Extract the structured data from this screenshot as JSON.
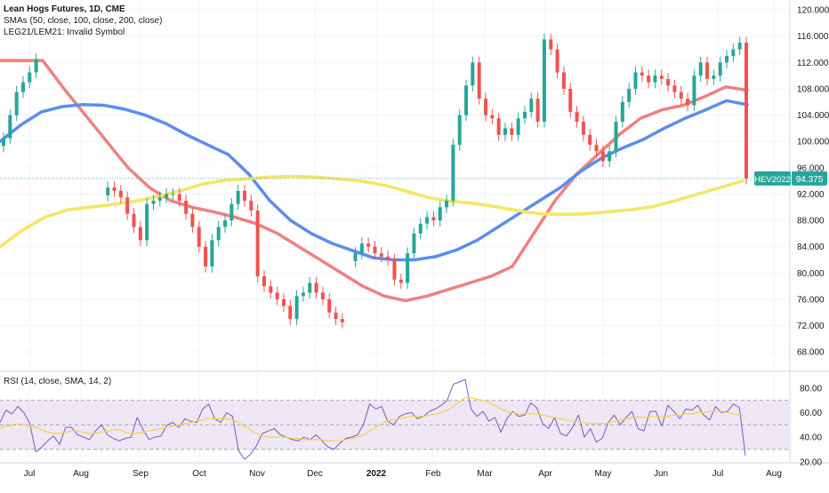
{
  "header": {
    "title": "Lean Hogs Futures, 1D, CME",
    "sma_label": "SMAs (50, close, 100, close, 200, close)",
    "invalid_symbol_label": "LEG21/LEM21: Invalid Symbol"
  },
  "rsi_panel": {
    "label": "RSI (14, close, SMA, 14, 2)"
  },
  "price_badge": {
    "symbol": "HEV2022",
    "price": "94.375"
  },
  "colors": {
    "up": "#26a69a",
    "down": "#ef5350",
    "sma50": "#f08080",
    "sma100": "#5b8def",
    "sma200": "#f5e663",
    "rsi": "#7e57c2",
    "rsi_ma": "#f5d342",
    "rsi_band": "#ede7f6",
    "badge_symbol": "#26a69a",
    "badge_price": "#26a69a"
  },
  "chart_data": [
    {
      "type": "candlestick",
      "y_ticks": [
        "120.000",
        "116.000",
        "112.000",
        "108.000",
        "104.000",
        "100.000",
        "96.000",
        "92.000",
        "88.000",
        "84.000",
        "80.000",
        "76.000",
        "72.000",
        "68.000"
      ],
      "ylim": [
        65.6,
        121.5
      ],
      "x_ticks": [
        "Jul",
        "Aug",
        "Sep",
        "Oct",
        "Nov",
        "Dec",
        "2022",
        "Feb",
        "Mar",
        "Apr",
        "May",
        "Jun",
        "Jul",
        "Aug"
      ],
      "close": [
        100.5,
        104.0,
        107.5,
        109.0,
        110.5,
        112.5,
        null,
        null,
        null,
        null,
        null,
        null,
        null,
        null,
        null,
        null,
        93.0,
        92.5,
        91.5,
        89.0,
        87.0,
        85.0,
        90.5,
        91.0,
        91.5,
        92.0,
        92.0,
        91.0,
        89.0,
        87.0,
        84.0,
        81.0,
        85.0,
        87.0,
        88.0,
        90.5,
        92.5,
        91.0,
        89.5,
        79.5,
        78.0,
        77.0,
        76.0,
        75.0,
        73.0,
        76.5,
        77.0,
        78.5,
        77.0,
        76.0,
        74.0,
        73.0,
        72.5,
        null,
        83.0,
        84.5,
        84.0,
        83.0,
        82.5,
        82.0,
        79.0,
        78.5,
        83.0,
        86.0,
        87.5,
        88.5,
        88.0,
        90.0,
        91.0,
        99.5,
        104.0,
        108.5,
        112.0,
        106.5,
        104.0,
        103.5,
        101.0,
        102.0,
        101.0,
        103.5,
        104.5,
        106.5,
        103.0,
        115.5,
        114.0,
        110.5,
        108.0,
        104.5,
        103.0,
        101.0,
        99.5,
        98.5,
        97.0,
        98.5,
        103.0,
        106.0,
        108.0,
        110.5,
        110.0,
        109.0,
        110.0,
        109.5,
        108.5,
        107.5,
        106.5,
        105.5,
        110.0,
        112.0,
        109.5,
        110.0,
        112.0,
        113.0,
        114.0,
        115.0,
        94.375
      ],
      "series": [
        {
          "name": "SMA 50",
          "color_key": "sma50",
          "values": [
            112.3,
            112.3,
            112.3,
            108.0,
            104.0,
            100.0,
            96.0,
            93.0,
            91.0,
            90.0,
            89.3,
            88.5,
            87.5,
            86.0,
            84.0,
            82.0,
            80.0,
            78.0,
            76.5,
            75.8,
            76.5,
            77.5,
            78.5,
            79.5,
            81.0,
            86.0,
            91.0,
            95.0,
            98.0,
            101.0,
            103.5,
            104.8,
            105.5,
            106.8,
            108.3,
            107.8
          ]
        },
        {
          "name": "SMA 100",
          "color_key": "sma100",
          "values": [
            100.0,
            102.5,
            104.5,
            105.3,
            105.6,
            105.5,
            104.9,
            104.0,
            102.7,
            101.0,
            99.5,
            98.0,
            95.0,
            91.0,
            88.0,
            86.0,
            84.5,
            83.4,
            82.3,
            82.0,
            82.0,
            82.5,
            83.5,
            85.0,
            87.0,
            89.0,
            91.0,
            93.0,
            95.5,
            97.5,
            99.0,
            100.3,
            102.0,
            103.5,
            104.8,
            106.2,
            105.6
          ]
        },
        {
          "name": "SMA 200",
          "color_key": "sma200",
          "values": [
            84.0,
            86.5,
            88.5,
            89.6,
            90.0,
            90.4,
            90.9,
            91.6,
            92.5,
            93.5,
            94.1,
            94.3,
            94.6,
            94.7,
            94.6,
            94.3,
            94.0,
            93.4,
            92.5,
            91.5,
            90.9,
            90.6,
            90.1,
            89.5,
            89.0,
            88.9,
            89.0,
            89.3,
            89.6,
            90.1,
            91.0,
            92.0,
            93.0,
            94.0
          ]
        }
      ]
    },
    {
      "type": "line",
      "y_ticks": [
        "80.00",
        "60.00",
        "40.00",
        "20.00"
      ],
      "ylim": [
        19.1,
        91.5
      ],
      "bands": {
        "upper": 70,
        "middle": 50,
        "lower": 30
      },
      "series": [
        {
          "name": "RSI",
          "color_key": "rsi",
          "values": [
            52,
            62,
            59,
            65,
            60,
            51,
            28,
            32,
            37,
            41,
            34,
            48,
            48,
            42,
            40,
            38,
            45,
            50,
            42,
            39,
            37,
            39,
            40,
            56,
            46,
            38,
            40,
            41,
            50,
            52,
            48,
            55,
            53,
            52,
            63,
            67,
            55,
            52,
            60,
            57,
            29,
            22,
            26,
            33,
            43,
            45,
            47,
            42,
            40,
            38,
            37,
            40,
            38,
            42,
            37,
            32,
            30,
            35,
            39,
            40,
            42,
            51,
            67,
            63,
            65,
            53,
            50,
            57,
            59,
            60,
            55,
            57,
            61,
            63,
            66,
            70,
            83,
            85,
            87,
            63,
            57,
            61,
            53,
            56,
            44,
            55,
            61,
            57,
            58,
            68,
            64,
            51,
            47,
            56,
            43,
            41,
            48,
            58,
            40,
            47,
            36,
            39,
            52,
            58,
            50,
            56,
            61,
            47,
            45,
            61,
            61,
            49,
            66,
            61,
            55,
            63,
            62,
            66,
            58,
            54,
            65,
            60,
            61,
            67,
            64,
            25
          ]
        },
        {
          "name": "RSI-based MA",
          "color_key": "rsi_ma",
          "values": [
            47,
            49,
            50,
            51,
            50,
            49,
            48,
            46,
            44,
            43,
            43,
            44,
            45,
            45,
            44,
            43,
            43,
            44,
            45,
            46,
            46,
            44,
            43,
            43,
            44,
            45,
            46,
            47,
            48,
            49,
            50,
            51,
            52,
            53,
            54,
            55,
            55,
            55,
            55,
            54,
            52,
            49,
            46,
            43,
            41,
            40,
            40,
            40,
            40,
            39,
            39,
            38,
            38,
            38,
            38,
            37,
            37,
            37,
            38,
            39,
            40,
            42,
            45,
            48,
            51,
            53,
            54,
            55,
            56,
            57,
            57,
            57,
            58,
            59,
            60,
            62,
            65,
            69,
            72,
            72,
            71,
            70,
            68,
            66,
            63,
            61,
            60,
            59,
            59,
            59,
            59,
            58,
            57,
            56,
            55,
            54,
            53,
            53,
            52,
            51,
            51,
            51,
            52,
            53,
            54,
            55,
            56,
            56,
            56,
            57,
            57,
            57,
            57,
            58,
            58,
            59,
            59,
            60,
            60,
            61,
            61,
            61,
            60,
            59,
            58,
            57
          ]
        }
      ]
    }
  ]
}
